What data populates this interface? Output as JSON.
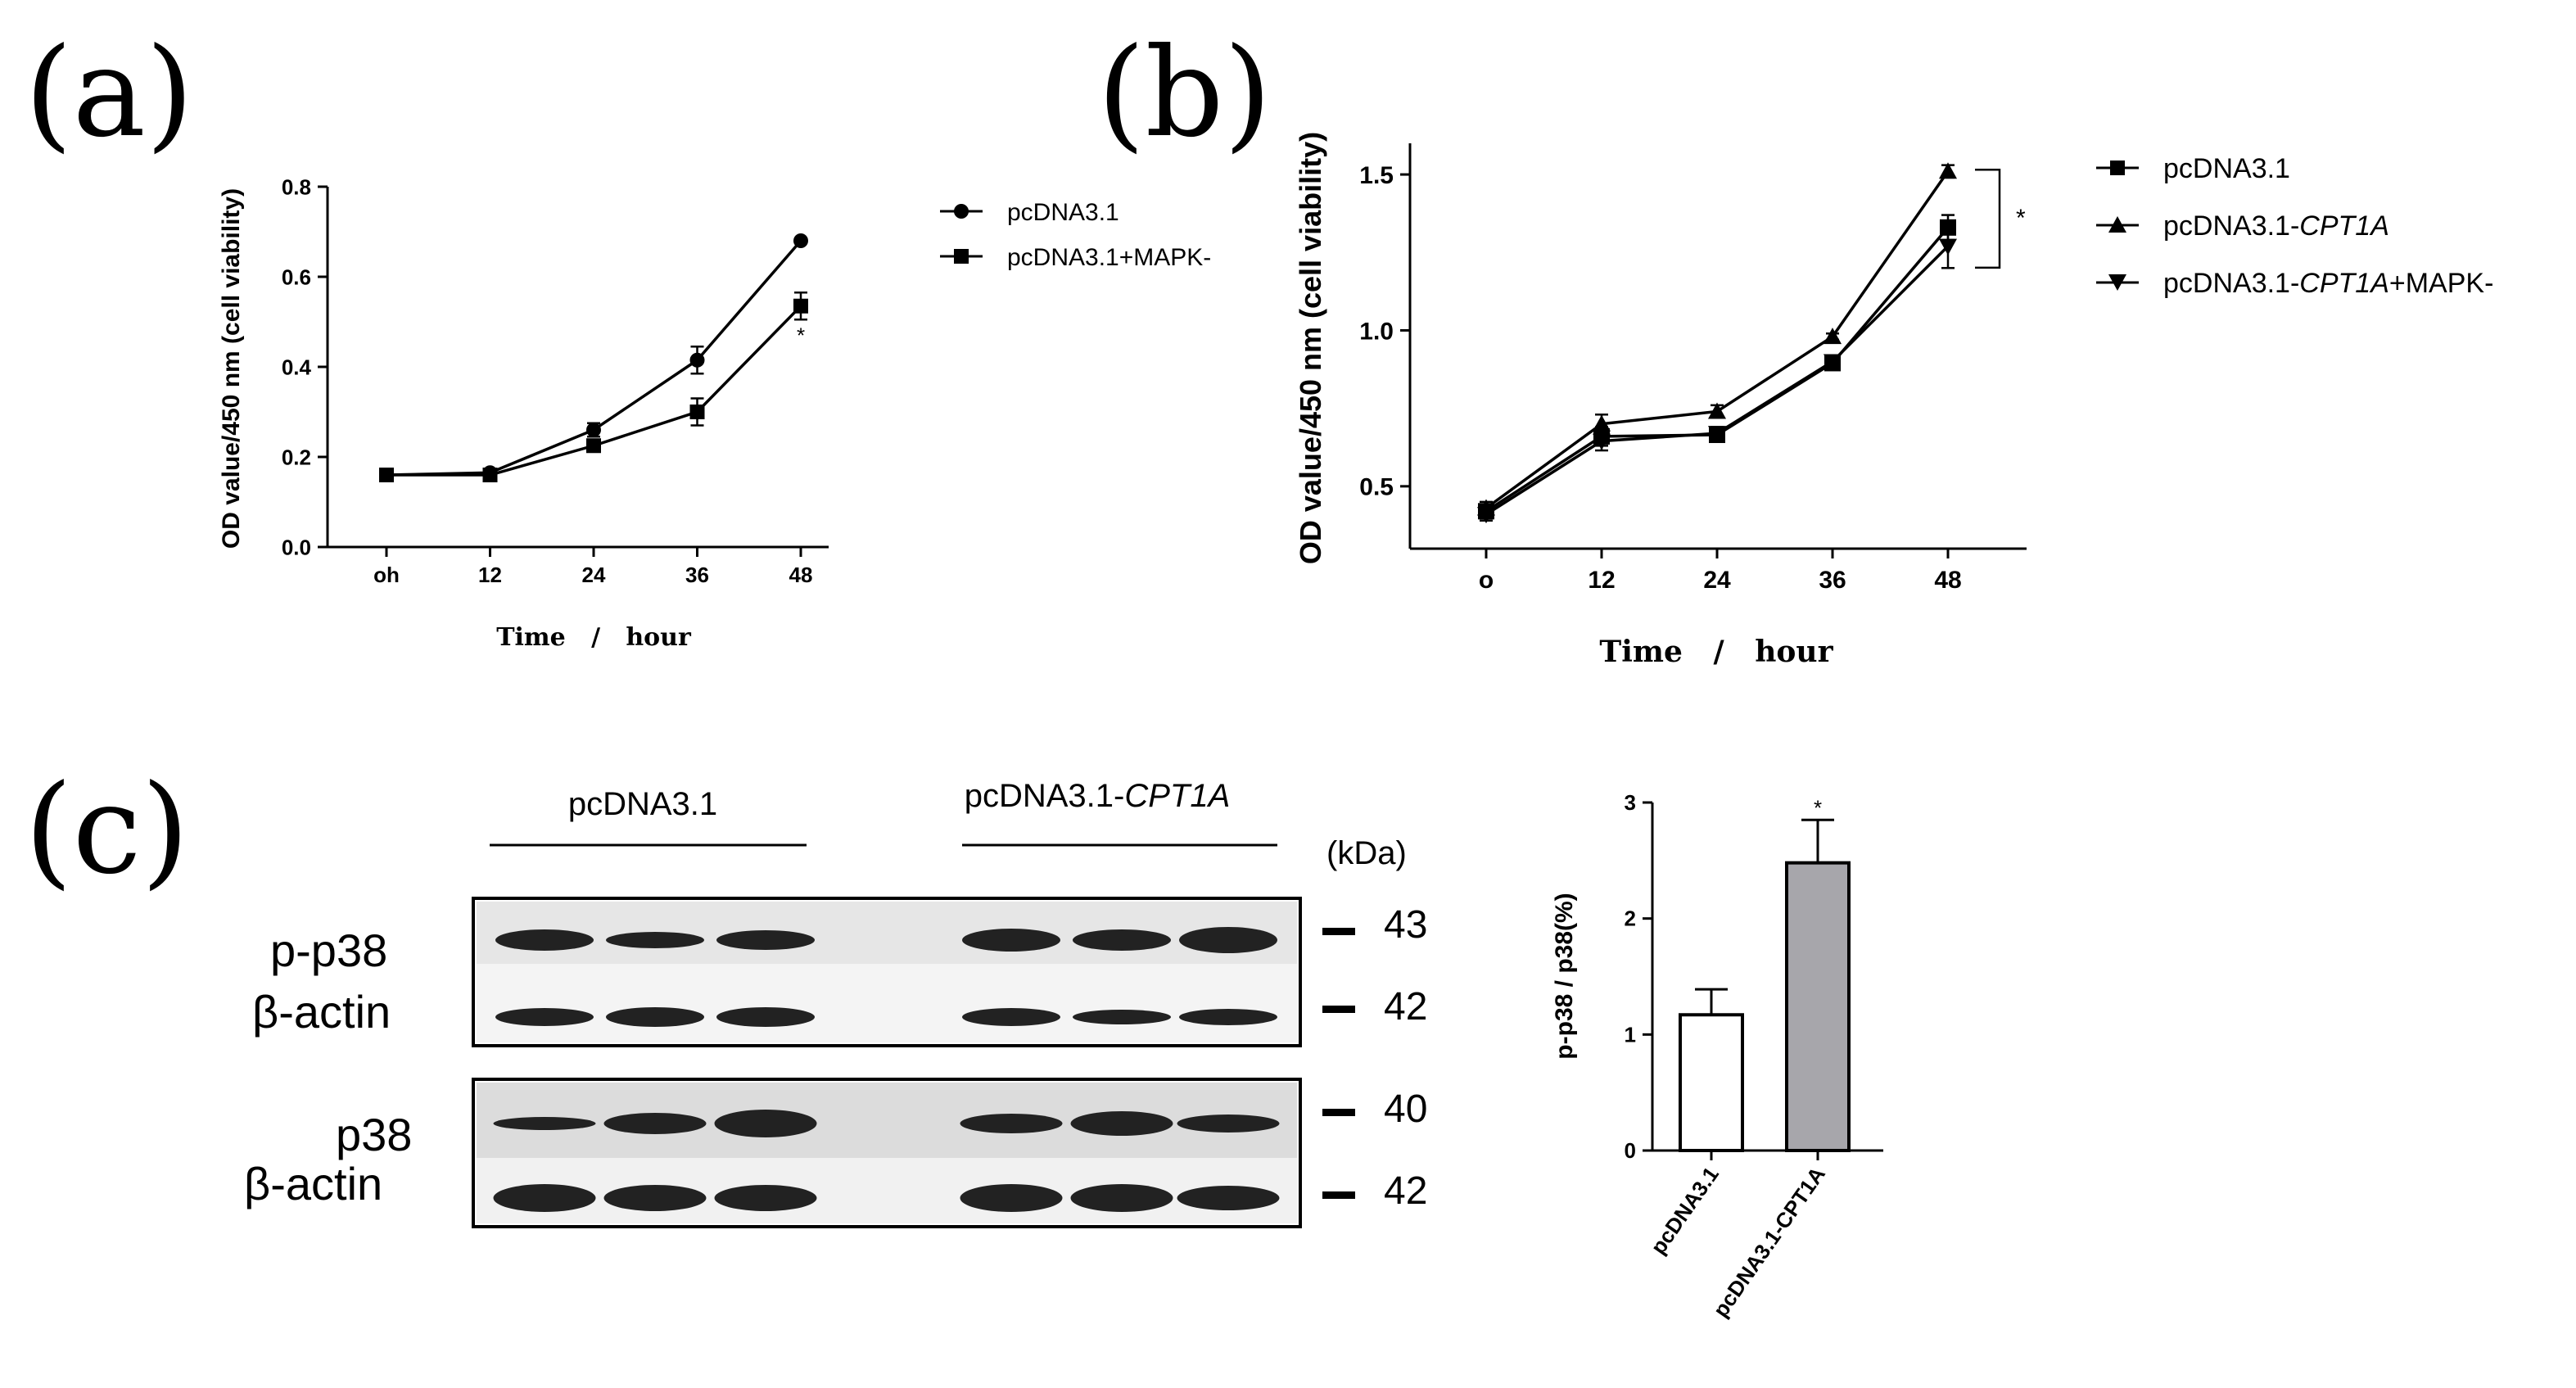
{
  "figure": {
    "panel_labels": [
      "(a)",
      "(b)",
      "(c)"
    ]
  },
  "chart_data": [
    {
      "type": "line",
      "panel": "(a)",
      "xlabel": "Time   /   hour",
      "ylabel": "OD value/450 nm (cell viability)",
      "x_ticks": [
        "oh",
        "12",
        "24",
        "36",
        "48"
      ],
      "y_ticks": [
        "0.0",
        "0.2",
        "0.4",
        "0.6",
        "0.8"
      ],
      "ylim": [
        0,
        0.8
      ],
      "series": [
        {
          "name": "pcDNA3.1",
          "marker": "circle",
          "values": [
            0.16,
            0.165,
            0.26,
            0.415,
            0.68
          ],
          "errors": [
            0.005,
            0.005,
            0.015,
            0.03,
            0.005
          ]
        },
        {
          "name": "pcDNA3.1+MAPK-",
          "marker": "square",
          "values": [
            0.16,
            0.16,
            0.225,
            0.3,
            0.535
          ],
          "errors": [
            0.005,
            0.005,
            0.01,
            0.03,
            0.03
          ]
        }
      ],
      "annotation": "*",
      "legend_position": "top-right"
    },
    {
      "type": "line",
      "panel": "(b)",
      "xlabel": "Time   /   hour",
      "ylabel": "OD value/450 nm (cell viability)",
      "x_ticks": [
        "o",
        "12",
        "24",
        "36",
        "48"
      ],
      "y_ticks": [
        "0.5",
        "1.0",
        "1.5"
      ],
      "ylim": [
        0.3,
        1.6
      ],
      "series": [
        {
          "name": "pcDNA3.1",
          "name_parts": [
            "pcDNA3.1",
            ""
          ],
          "marker": "square",
          "values": [
            0.42,
            0.66,
            0.665,
            0.895,
            1.33
          ],
          "errors": [
            0.02,
            0.03,
            0.02,
            0.02,
            0.04
          ]
        },
        {
          "name": "pcDNA3.1-CPT1A",
          "name_parts": [
            "pcDNA3.1-",
            "CPT1A",
            ""
          ],
          "marker": "triangle-up",
          "values": [
            0.43,
            0.7,
            0.74,
            0.98,
            1.51
          ],
          "errors": [
            0.02,
            0.03,
            0.02,
            0.01,
            0.02
          ]
        },
        {
          "name": "pcDNA3.1-CPT1A+MAPK-",
          "name_parts": [
            "pcDNA3.1-",
            "CPT1A",
            "+MAPK-"
          ],
          "marker": "triangle-down",
          "values": [
            0.41,
            0.645,
            0.67,
            0.9,
            1.27
          ],
          "errors": [
            0.02,
            0.03,
            0.02,
            0.02,
            0.07
          ]
        }
      ],
      "annotation": "*",
      "legend_position": "top-right"
    },
    {
      "type": "bar",
      "panel": "(c)",
      "ylabel": "p-p38 / p38(%)",
      "categories": [
        "pcDNA3.1",
        "pcDNA3.1-CPT1A"
      ],
      "values": [
        1.17,
        2.48
      ],
      "errors": [
        0.22,
        0.37
      ],
      "fills": [
        "#ffffff",
        "#a7a6ab"
      ],
      "y_ticks": [
        "0",
        "1",
        "2",
        "3"
      ],
      "ylim": [
        0,
        3
      ],
      "annotation": "*"
    }
  ],
  "blot": {
    "group_labels": {
      "left": "pcDNA3.1",
      "right_prefix": "pcDNA3.1-",
      "right_italic": "CPT1A"
    },
    "unit": "(kDa)",
    "rows": [
      {
        "label": "p-p38",
        "kda": "43"
      },
      {
        "label": "β-actin",
        "kda": "42"
      },
      {
        "label": "p38",
        "kda": "40"
      },
      {
        "label": "β-actin",
        "kda": "42"
      }
    ]
  },
  "colors": {
    "ink": "#000000",
    "gray_bar": "#a7a6ab",
    "blot_bg": "#e9e9e9",
    "band": "#222222"
  }
}
